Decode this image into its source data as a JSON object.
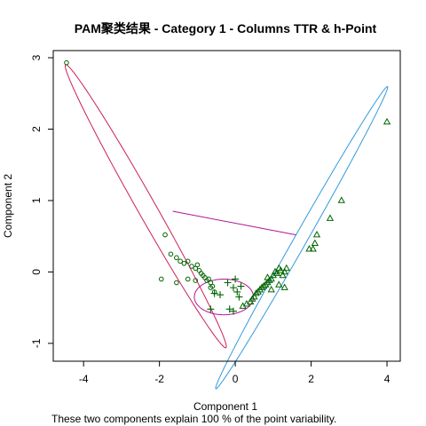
{
  "chart_data": {
    "type": "scatter",
    "title": "PAM聚类结果 - Category  1  - Columns  TTR  &  h-Point",
    "xlabel": "Component 1",
    "ylabel": "Component 2",
    "subtitle": "These two components explain 100 % of the point variability.",
    "xlim": [
      -4.8,
      4.35
    ],
    "ylim": [
      -1.25,
      3.1
    ],
    "x_ticks": [
      -4,
      -2,
      0,
      2,
      4
    ],
    "y_ticks": [
      -1,
      0,
      1,
      2,
      3
    ],
    "x_tick_labels": [
      "-4",
      "-2",
      "0",
      "2",
      "4"
    ],
    "y_tick_labels": [
      "-1",
      "0",
      "1",
      "2",
      "3"
    ],
    "grid": false,
    "legend": "none",
    "colors": {
      "points": "#006400",
      "cluster1_ellipse": "#cc1f5a",
      "cluster2_ellipse": "#3399dd",
      "cluster3_ellipse": "#b0169a",
      "connector_line": "#b0169a"
    },
    "clusters": [
      {
        "marker": "circle",
        "points": [
          [
            -4.45,
            2.93
          ],
          [
            -1.85,
            0.52
          ],
          [
            -1.7,
            0.25
          ],
          [
            -1.55,
            0.2
          ],
          [
            -1.45,
            0.15
          ],
          [
            -1.35,
            0.12
          ],
          [
            -1.25,
            0.15
          ],
          [
            -1.15,
            0.08
          ],
          [
            -1.05,
            0.05
          ],
          [
            -1.0,
            0.1
          ],
          [
            -0.95,
            0.02
          ],
          [
            -0.9,
            -0.02
          ],
          [
            -0.85,
            -0.05
          ],
          [
            -0.8,
            -0.08
          ],
          [
            -0.75,
            -0.12
          ],
          [
            -0.7,
            -0.1
          ],
          [
            -0.65,
            -0.15
          ],
          [
            -0.6,
            -0.2
          ],
          [
            -1.55,
            -0.15
          ],
          [
            -1.25,
            -0.1
          ],
          [
            -1.05,
            -0.12
          ],
          [
            -0.65,
            -0.22
          ],
          [
            -0.55,
            -0.28
          ],
          [
            -1.95,
            -0.1
          ]
        ],
        "ellipse": {
          "center": [
            -2.36,
            0.92
          ],
          "semi_major": 2.9,
          "semi_minor": 0.19,
          "angle_deg": -43
        }
      },
      {
        "marker": "triangle",
        "points": [
          [
            4.0,
            2.1
          ],
          [
            2.8,
            1.0
          ],
          [
            2.5,
            0.75
          ],
          [
            2.15,
            0.52
          ],
          [
            2.1,
            0.4
          ],
          [
            2.05,
            0.32
          ],
          [
            1.95,
            0.32
          ],
          [
            1.35,
            0.05
          ],
          [
            1.3,
            0.0
          ],
          [
            1.25,
            -0.05
          ],
          [
            1.2,
            0.02
          ],
          [
            1.15,
            0.05
          ],
          [
            1.1,
            -0.02
          ],
          [
            1.05,
            0.0
          ],
          [
            1.0,
            -0.05
          ],
          [
            0.95,
            -0.1
          ],
          [
            0.9,
            -0.12
          ],
          [
            0.85,
            -0.15
          ],
          [
            0.8,
            -0.18
          ],
          [
            0.75,
            -0.2
          ],
          [
            0.7,
            -0.22
          ],
          [
            0.65,
            -0.25
          ],
          [
            0.6,
            -0.28
          ],
          [
            0.55,
            -0.3
          ],
          [
            0.5,
            -0.35
          ],
          [
            0.45,
            -0.38
          ],
          [
            0.4,
            -0.42
          ],
          [
            0.3,
            -0.45
          ],
          [
            0.2,
            -0.48
          ],
          [
            1.3,
            -0.22
          ],
          [
            0.85,
            -0.08
          ],
          [
            1.15,
            -0.18
          ],
          [
            0.95,
            -0.25
          ]
        ],
        "ellipse": {
          "center": [
            1.75,
            0.48
          ],
          "semi_major": 3.1,
          "semi_minor": 0.13,
          "angle_deg": 43
        }
      },
      {
        "marker": "plus",
        "points": [
          [
            -0.55,
            -0.3
          ],
          [
            -0.4,
            -0.32
          ],
          [
            -0.2,
            -0.15
          ],
          [
            -0.05,
            -0.22
          ],
          [
            0.05,
            -0.28
          ],
          [
            0.1,
            -0.35
          ],
          [
            -0.15,
            -0.52
          ],
          [
            -0.05,
            -0.55
          ],
          [
            -0.65,
            -0.52
          ],
          [
            0.15,
            -0.2
          ],
          [
            0.0,
            -0.1
          ]
        ],
        "ellipse": {
          "center": [
            -0.3,
            -0.35
          ],
          "semi_major": 0.78,
          "semi_minor": 0.25,
          "angle_deg": 0
        }
      }
    ],
    "connector": [
      [
        -1.65,
        0.85
      ],
      [
        1.6,
        0.52
      ]
    ]
  }
}
